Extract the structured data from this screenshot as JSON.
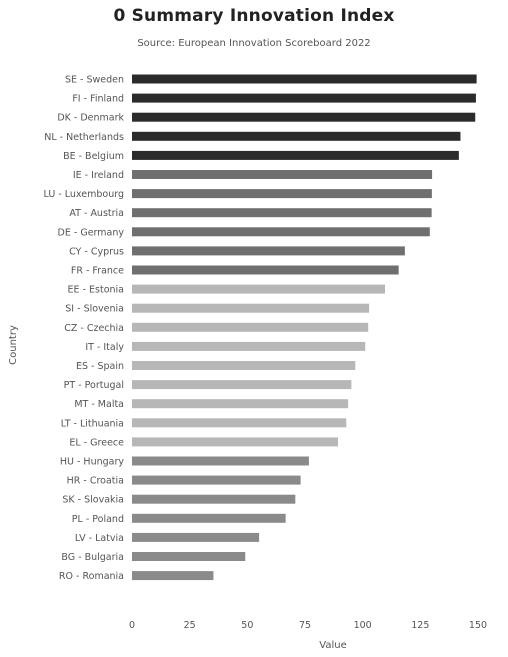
{
  "chart_data": {
    "type": "bar",
    "orientation": "horizontal",
    "title": "0 Summary Innovation Index",
    "subtitle": "Source: European Innovation Scoreboard 2022",
    "xlabel": "Value",
    "ylabel": "Country",
    "xlim": [
      0,
      150
    ],
    "xticks": [
      "0",
      "25",
      "50",
      "75",
      "100",
      "125",
      "150"
    ],
    "grid": false,
    "categories": [
      "SE - Sweden",
      "FI - Finland",
      "DK - Denmark",
      "NL - Netherlands",
      "BE - Belgium",
      "IE - Ireland",
      "LU - Luxembourg",
      "AT - Austria",
      "DE - Germany",
      "CY - Cyprus",
      "FR - France",
      "EE - Estonia",
      "SI - Slovenia",
      "CZ - Czechia",
      "IT - Italy",
      "ES - Spain",
      "PT - Portugal",
      "MT - Malta",
      "LT - Lithuania",
      "EL - Greece",
      "HU - Hungary",
      "HR - Croatia",
      "SK - Slovakia",
      "PL - Poland",
      "LV - Latvia",
      "BG - Bulgaria",
      "RO - Romania"
    ],
    "values": [
      149.4,
      149.1,
      148.8,
      142.4,
      141.7,
      130.1,
      130.0,
      129.9,
      129.1,
      118.3,
      115.6,
      109.7,
      102.8,
      102.4,
      101.1,
      96.8,
      95.1,
      93.7,
      92.9,
      89.3,
      76.7,
      73.1,
      70.8,
      66.6,
      55.1,
      49.1,
      35.3
    ],
    "bar_colors": [
      "#2b2b2b",
      "#2b2b2b",
      "#2b2b2b",
      "#2b2b2b",
      "#2b2b2b",
      "#6f6f6f",
      "#6f6f6f",
      "#6f6f6f",
      "#6f6f6f",
      "#6f6f6f",
      "#6f6f6f",
      "#b7b7b7",
      "#b7b7b7",
      "#b7b7b7",
      "#b7b7b7",
      "#b7b7b7",
      "#b7b7b7",
      "#b7b7b7",
      "#b7b7b7",
      "#b7b7b7",
      "#8a8a8a",
      "#8a8a8a",
      "#8a8a8a",
      "#8a8a8a",
      "#8a8a8a",
      "#8a8a8a",
      "#8a8a8a"
    ]
  }
}
